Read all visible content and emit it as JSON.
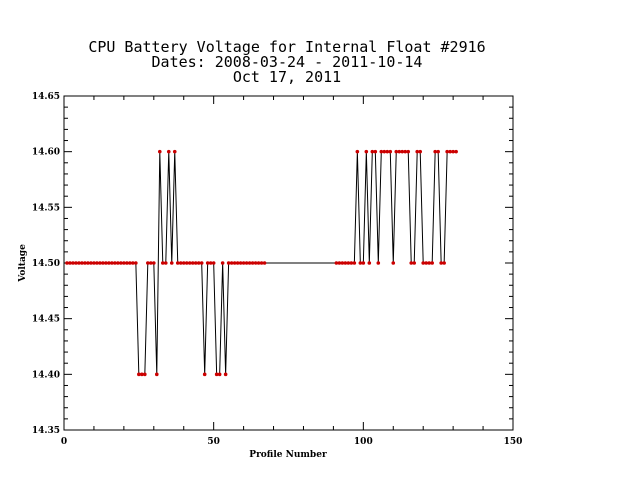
{
  "chart_data": {
    "type": "line",
    "title_lines": [
      "CPU Battery Voltage for Internal Float #2916",
      "Dates:  2008-03-24 -  2011-10-14",
      "Oct 17, 2011"
    ],
    "xlabel": "Profile Number",
    "ylabel": "Voltage",
    "xlim": [
      0,
      150
    ],
    "ylim": [
      14.35,
      14.65
    ],
    "x_ticks": [
      0,
      50,
      100,
      150
    ],
    "y_ticks": [
      14.35,
      14.4,
      14.45,
      14.5,
      14.55,
      14.6,
      14.65
    ],
    "x_tick_labels": [
      "0",
      "50",
      "100",
      "150"
    ],
    "y_tick_labels": [
      "14.35",
      "14.40",
      "14.45",
      "14.50",
      "14.55",
      "14.60",
      "14.65"
    ],
    "series_color": "#000000",
    "marker_color": "#cc0000",
    "x": [
      1,
      2,
      3,
      4,
      5,
      6,
      7,
      8,
      9,
      10,
      11,
      12,
      13,
      14,
      15,
      16,
      17,
      18,
      19,
      20,
      21,
      22,
      23,
      24,
      25,
      26,
      27,
      28,
      29,
      30,
      31,
      32,
      33,
      34,
      35,
      36,
      37,
      38,
      39,
      40,
      41,
      42,
      43,
      44,
      45,
      46,
      47,
      48,
      49,
      50,
      51,
      52,
      53,
      54,
      55,
      56,
      57,
      58,
      59,
      60,
      61,
      62,
      63,
      64,
      65,
      66,
      67,
      91,
      92,
      93,
      94,
      95,
      96,
      97,
      98,
      99,
      100,
      101,
      102,
      103,
      104,
      105,
      106,
      107,
      108,
      109,
      110,
      111,
      112,
      113,
      114,
      115,
      116,
      117,
      118,
      119,
      120,
      121,
      122,
      123,
      124,
      125,
      126,
      127,
      128,
      129,
      130,
      131
    ],
    "y": [
      14.5,
      14.5,
      14.5,
      14.5,
      14.5,
      14.5,
      14.5,
      14.5,
      14.5,
      14.5,
      14.5,
      14.5,
      14.5,
      14.5,
      14.5,
      14.5,
      14.5,
      14.5,
      14.5,
      14.5,
      14.5,
      14.5,
      14.5,
      14.5,
      14.4,
      14.4,
      14.4,
      14.5,
      14.5,
      14.5,
      14.4,
      14.6,
      14.5,
      14.5,
      14.6,
      14.5,
      14.6,
      14.5,
      14.5,
      14.5,
      14.5,
      14.5,
      14.5,
      14.5,
      14.5,
      14.5,
      14.4,
      14.5,
      14.5,
      14.5,
      14.4,
      14.4,
      14.5,
      14.4,
      14.5,
      14.5,
      14.5,
      14.5,
      14.5,
      14.5,
      14.5,
      14.5,
      14.5,
      14.5,
      14.5,
      14.5,
      14.5,
      14.5,
      14.5,
      14.5,
      14.5,
      14.5,
      14.5,
      14.5,
      14.6,
      14.5,
      14.5,
      14.6,
      14.5,
      14.6,
      14.6,
      14.5,
      14.6,
      14.6,
      14.6,
      14.6,
      14.5,
      14.6,
      14.6,
      14.6,
      14.6,
      14.6,
      14.5,
      14.5,
      14.6,
      14.6,
      14.5,
      14.5,
      14.5,
      14.5,
      14.6,
      14.6,
      14.5,
      14.5,
      14.6,
      14.6,
      14.6,
      14.6
    ]
  }
}
